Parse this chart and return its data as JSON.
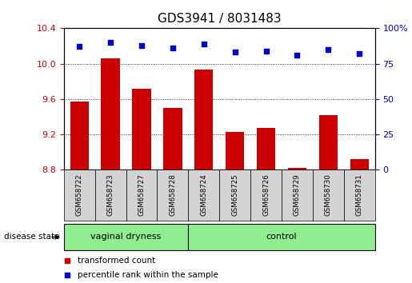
{
  "title": "GDS3941 / 8031483",
  "samples": [
    "GSM658722",
    "GSM658723",
    "GSM658727",
    "GSM658728",
    "GSM658724",
    "GSM658725",
    "GSM658726",
    "GSM658729",
    "GSM658730",
    "GSM658731"
  ],
  "bar_values": [
    9.57,
    10.06,
    9.72,
    9.5,
    9.93,
    9.23,
    9.27,
    8.82,
    9.42,
    8.92
  ],
  "dot_values": [
    87,
    90,
    88,
    86,
    89,
    83,
    84,
    81,
    85,
    82
  ],
  "ylim_left": [
    8.8,
    10.4
  ],
  "ylim_right": [
    0,
    100
  ],
  "yticks_left": [
    8.8,
    9.2,
    9.6,
    10.0,
    10.4
  ],
  "yticks_right": [
    0,
    25,
    50,
    75,
    100
  ],
  "ytick_labels_right": [
    "0",
    "25",
    "50",
    "75",
    "100%"
  ],
  "bar_color": "#cc0000",
  "dot_color": "#0000cc",
  "groups": [
    {
      "label": "vaginal dryness",
      "start": 0,
      "end": 4
    },
    {
      "label": "control",
      "start": 4,
      "end": 10
    }
  ],
  "group_label": "disease state",
  "legend_items": [
    {
      "label": "transformed count",
      "color": "#cc0000"
    },
    {
      "label": "percentile rank within the sample",
      "color": "#0000cc"
    }
  ],
  "tick_area_color": "#d3d3d3",
  "green_color": "#90EE90",
  "title_fontsize": 11
}
